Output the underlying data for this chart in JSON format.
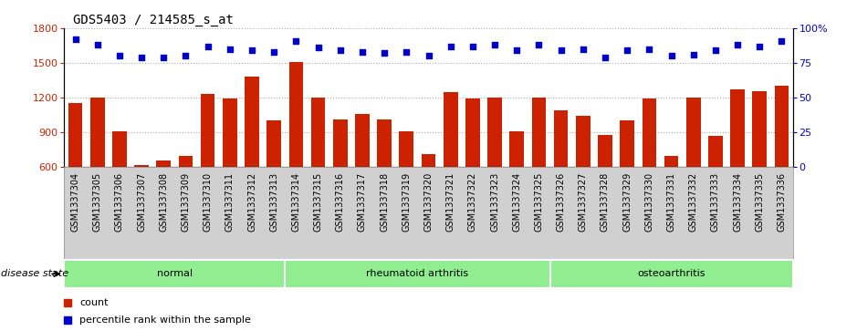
{
  "title": "GDS5403 / 214585_s_at",
  "samples": [
    "GSM1337304",
    "GSM1337305",
    "GSM1337306",
    "GSM1337307",
    "GSM1337308",
    "GSM1337309",
    "GSM1337310",
    "GSM1337311",
    "GSM1337312",
    "GSM1337313",
    "GSM1337314",
    "GSM1337315",
    "GSM1337316",
    "GSM1337317",
    "GSM1337318",
    "GSM1337319",
    "GSM1337320",
    "GSM1337321",
    "GSM1337322",
    "GSM1337323",
    "GSM1337324",
    "GSM1337325",
    "GSM1337326",
    "GSM1337327",
    "GSM1337328",
    "GSM1337329",
    "GSM1337330",
    "GSM1337331",
    "GSM1337332",
    "GSM1337333",
    "GSM1337334",
    "GSM1337335",
    "GSM1337336"
  ],
  "counts": [
    1150,
    1200,
    910,
    615,
    660,
    700,
    1230,
    1190,
    1380,
    1005,
    1510,
    1200,
    1010,
    1060,
    1010,
    910,
    710,
    1250,
    1195,
    1200,
    910,
    1200,
    1090,
    1040,
    875,
    1000,
    1195,
    695,
    1200,
    870,
    1270,
    1255,
    1300
  ],
  "percentiles": [
    92,
    88,
    80,
    79,
    79,
    80,
    87,
    85,
    84,
    83,
    91,
    86,
    84,
    83,
    82,
    83,
    80,
    87,
    87,
    88,
    84,
    88,
    84,
    85,
    79,
    84,
    85,
    80,
    81,
    84,
    88,
    87,
    91
  ],
  "bar_color": "#cc2200",
  "dot_color": "#0000cc",
  "left_ylim": [
    600,
    1800
  ],
  "left_yticks": [
    600,
    900,
    1200,
    1500,
    1800
  ],
  "right_ylim": [
    0,
    100
  ],
  "right_yticks": [
    0,
    25,
    50,
    75,
    100
  ],
  "right_yticklabels": [
    "0",
    "25",
    "50",
    "75",
    "100%"
  ],
  "groups": [
    {
      "label": "normal",
      "start": 0,
      "end": 9
    },
    {
      "label": "rheumatoid arthritis",
      "start": 10,
      "end": 21
    },
    {
      "label": "osteoarthritis",
      "start": 22,
      "end": 32
    }
  ],
  "group_color": "#90ee90",
  "group_border_color": "#ffffff",
  "group_text_color": "#000000",
  "disease_state_label": "disease state",
  "legend_count_label": "count",
  "legend_percentile_label": "percentile rank within the sample",
  "grid_color": "#aaaaaa",
  "title_fontsize": 10,
  "tick_label_fontsize": 7,
  "axis_tick_fontsize": 8,
  "group_label_fontsize": 8,
  "legend_fontsize": 8,
  "xtick_bg_color": "#d0d0d0"
}
